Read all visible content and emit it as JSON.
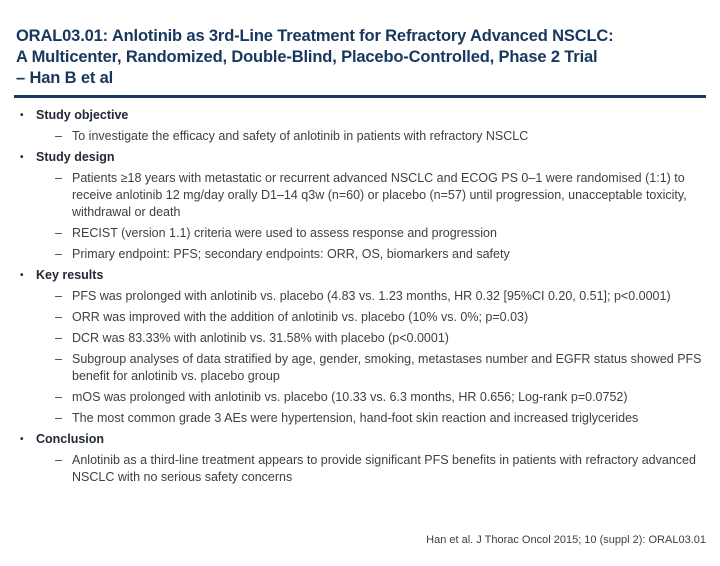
{
  "bullets": {
    "l1": "•",
    "l2": "–"
  },
  "colors": {
    "title": "#17375E",
    "divider": "#17375E",
    "heading_text": "#222A35",
    "body_text": "#404040"
  },
  "title": {
    "line1": "ORAL03.01: Anlotinib as 3rd-Line Treatment for Refractory Advanced NSCLC:",
    "line2": "A Multicenter, Randomized, Double-Blind, Placebo-Controlled, Phase 2 Trial",
    "line3": "– Han B et al"
  },
  "content": {
    "sections": [
      {
        "heading": "Study objective",
        "items": [
          "To investigate the efficacy and safety of anlotinib in patients with refractory NSCLC"
        ]
      },
      {
        "heading": "Study design",
        "items": [
          "Patients ≥18 years with metastatic or recurrent advanced NSCLC and ECOG PS 0–1 were randomised (1:1) to receive anlotinib 12 mg/day orally D1–14 q3w (n=60) or placebo (n=57) until progression, unacceptable toxicity, withdrawal or death",
          "RECIST (version 1.1) criteria were used to assess response and progression",
          "Primary endpoint: PFS; secondary endpoints: ORR, OS, biomarkers and safety"
        ]
      },
      {
        "heading": "Key results",
        "items": [
          "PFS was prolonged with anlotinib vs. placebo (4.83 vs. 1.23 months, HR 0.32 [95%CI 0.20, 0.51]; p<0.0001)",
          "ORR was improved with the addition of anlotinib vs. placebo (10% vs. 0%; p=0.03)",
          "DCR was 83.33% with anlotinib vs. 31.58% with placebo (p<0.0001)",
          "Subgroup analyses of data stratified by age, gender, smoking, metastases number and EGFR status showed PFS benefit for anlotinib vs. placebo group",
          "mOS was prolonged with anlotinib vs. placebo (10.33 vs. 6.3 months, HR 0.656; Log-rank p=0.0752)",
          "The most common grade 3 AEs were hypertension, hand-foot skin reaction and increased triglycerides"
        ]
      },
      {
        "heading": "Conclusion",
        "items": [
          "Anlotinib as a third-line treatment appears to provide significant PFS benefits in patients with refractory advanced NSCLC with no serious safety concerns"
        ]
      }
    ]
  },
  "footer": {
    "citation": "Han et al. J Thorac Oncol 2015; 10 (suppl 2): ORAL03.01"
  }
}
